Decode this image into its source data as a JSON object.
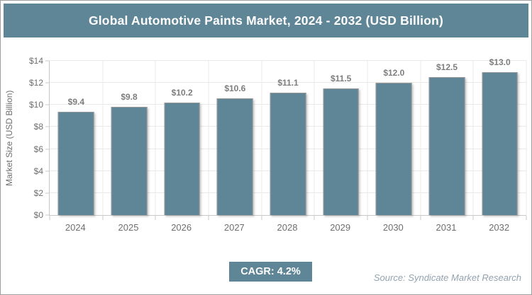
{
  "header": {
    "title": "Global Automotive Paints Market, 2024 - 2032 (USD Billion)"
  },
  "chart_data": {
    "type": "bar",
    "title": "Global Automotive Paints Market, 2024 - 2032 (USD Billion)",
    "categories": [
      "2024",
      "2025",
      "2026",
      "2027",
      "2028",
      "2029",
      "2030",
      "2031",
      "2032"
    ],
    "values": [
      9.4,
      9.8,
      10.2,
      10.6,
      11.1,
      11.5,
      12.0,
      12.5,
      13.0
    ],
    "value_labels": [
      "$9.4",
      "$9.8",
      "$10.2",
      "$10.6",
      "$11.1",
      "$11.5",
      "$12.0",
      "$12.5",
      "$13.0"
    ],
    "xlabel": "",
    "ylabel": "Market Size (USD Billion)",
    "ylim": [
      0,
      14
    ],
    "y_tick_step": 2,
    "y_ticks": [
      "$0",
      "$2",
      "$4",
      "$6",
      "$8",
      "$10",
      "$12",
      "$14"
    ],
    "grid": true,
    "legend": false
  },
  "footer": {
    "cagr_label": "CAGR: 4.2%",
    "source": "Source: Syndicate Market Research"
  },
  "colors": {
    "accent": "#5f8697",
    "bar": "#5f8697",
    "grid": "#e9e9e9",
    "axis": "#c9c9c9",
    "value_label": "#7d7d7d",
    "tick_label": "#6e6e6e",
    "source_text": "#93a3af",
    "title_text": "#ffffff",
    "border": "#9f9f9f"
  }
}
